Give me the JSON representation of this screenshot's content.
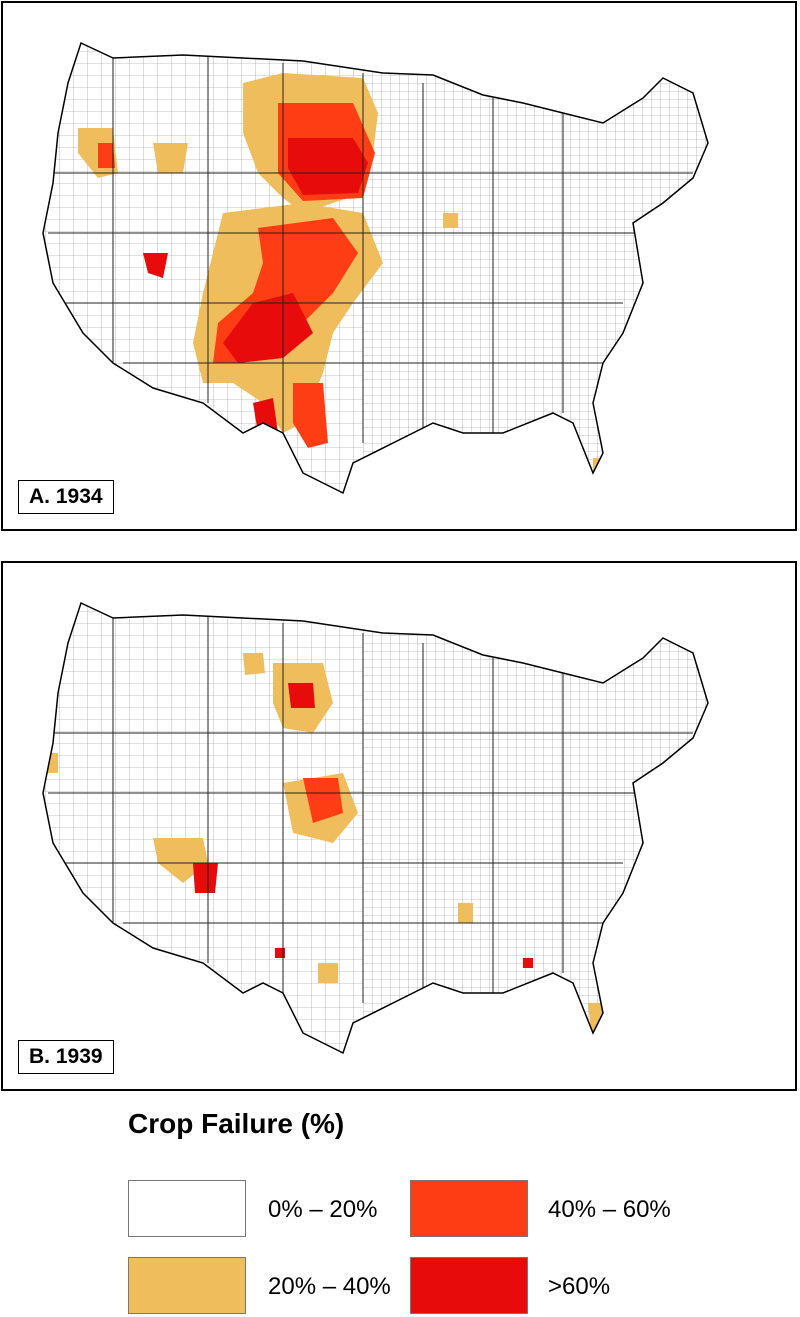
{
  "panels": [
    {
      "label": "A. 1934"
    },
    {
      "label": "B. 1939"
    }
  ],
  "legend": {
    "title": "Crop Failure (%)",
    "items": [
      {
        "label": "0% – 20%",
        "color": "#ffffff"
      },
      {
        "label": "20% – 40%",
        "color": "#f0bd5d"
      },
      {
        "label": "40% – 60%",
        "color": "#ff3d14"
      },
      {
        "label": ">60%",
        "color": "#e80b0b"
      }
    ]
  },
  "colors": {
    "outline": "#000000",
    "county_lines": "#7a7a7a"
  }
}
